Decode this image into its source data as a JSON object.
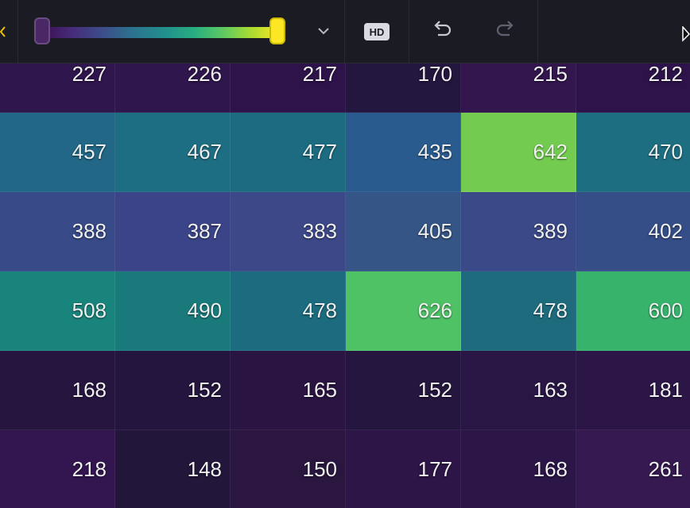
{
  "toolbar": {
    "hd_label": "HD",
    "colormap": {
      "name": "viridis",
      "range_min": 0.0,
      "range_max": 1.0
    }
  },
  "heatmap": {
    "columns": 6,
    "rows": [
      [
        {
          "value": "227",
          "color": "#2f164c"
        },
        {
          "value": "226",
          "color": "#2f164c"
        },
        {
          "value": "217",
          "color": "#2d1349"
        },
        {
          "value": "170",
          "color": "#23163f"
        },
        {
          "value": "215",
          "color": "#33164d"
        },
        {
          "value": "212",
          "color": "#2d1349"
        }
      ],
      [
        {
          "value": "457",
          "color": "#226785"
        },
        {
          "value": "467",
          "color": "#1d6e82"
        },
        {
          "value": "477",
          "color": "#1c6b80"
        },
        {
          "value": "435",
          "color": "#2a5b8e"
        },
        {
          "value": "642",
          "color": "#73cc4f"
        },
        {
          "value": "470",
          "color": "#1c6e80"
        }
      ],
      [
        {
          "value": "388",
          "color": "#384a88"
        },
        {
          "value": "387",
          "color": "#3b4489"
        },
        {
          "value": "383",
          "color": "#3c4888"
        },
        {
          "value": "405",
          "color": "#345585"
        },
        {
          "value": "389",
          "color": "#3a4a88"
        },
        {
          "value": "402",
          "color": "#354e88"
        }
      ],
      [
        {
          "value": "508",
          "color": "#19847c"
        },
        {
          "value": "490",
          "color": "#1a7a7b"
        },
        {
          "value": "478",
          "color": "#1c6b7f"
        },
        {
          "value": "626",
          "color": "#4fc266"
        },
        {
          "value": "478",
          "color": "#1d6b7d"
        },
        {
          "value": "600",
          "color": "#37b36c"
        }
      ],
      [
        {
          "value": "168",
          "color": "#26163f"
        },
        {
          "value": "152",
          "color": "#23153d"
        },
        {
          "value": "165",
          "color": "#2a1442"
        },
        {
          "value": "152",
          "color": "#24163e"
        },
        {
          "value": "163",
          "color": "#291645"
        },
        {
          "value": "181",
          "color": "#2c1647"
        }
      ],
      [
        {
          "value": "218",
          "color": "#331650"
        },
        {
          "value": "148",
          "color": "#22163b"
        },
        {
          "value": "150",
          "color": "#2a163f"
        },
        {
          "value": "177",
          "color": "#2d1547"
        },
        {
          "value": "168",
          "color": "#2b1647"
        },
        {
          "value": "261",
          "color": "#351950"
        }
      ]
    ]
  }
}
